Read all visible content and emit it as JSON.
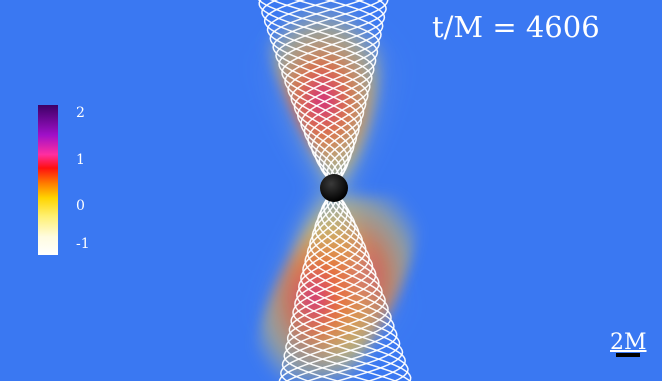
{
  "time_label": "t/M = 4606",
  "colorbar": {
    "ticks": [
      "2",
      "1",
      "0",
      "-1"
    ],
    "colors": [
      "#3d0066",
      "#a010c8",
      "#ff2ea0",
      "#ff1010",
      "#ff7a00",
      "#ffd400",
      "#fff070",
      "#ffffff"
    ]
  },
  "scale_bar_label": "2M",
  "background_color": "#3a78f2"
}
